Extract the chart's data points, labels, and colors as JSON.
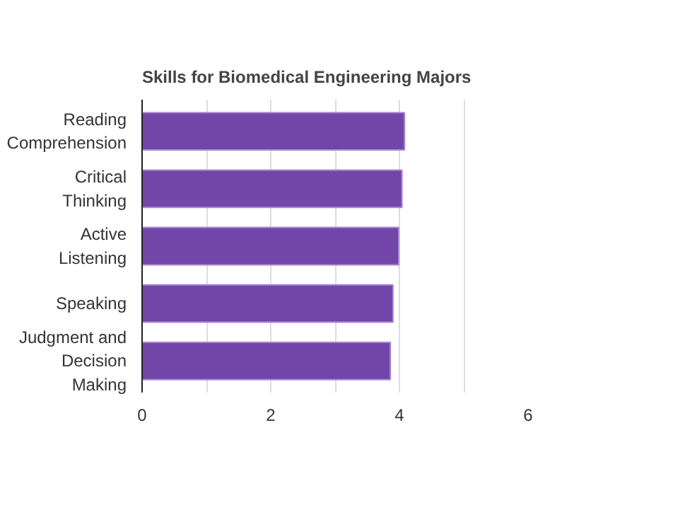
{
  "chart_data": {
    "type": "bar",
    "orientation": "horizontal",
    "title": "Skills for Biomedical Engineering Majors",
    "categories": [
      "Reading Comprehension",
      "Critical Thinking",
      "Active Listening",
      "Speaking",
      "Judgment and Decision Making"
    ],
    "values": [
      4.08,
      4.04,
      3.99,
      3.9,
      3.86
    ],
    "color": "#7246a8",
    "xlim": [
      0,
      6
    ],
    "xticks": [
      0,
      {
        "value": 1,
        "label": null
      },
      2,
      {
        "value": 3,
        "label": null
      },
      4,
      {
        "value": 5,
        "label": null
      },
      6
    ],
    "grid": "x"
  }
}
